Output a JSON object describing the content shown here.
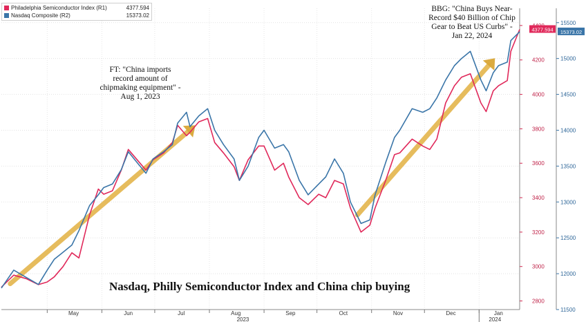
{
  "chart_data": {
    "type": "line",
    "title": "Nasdaq, Philly Semiconductor Index and China chip buying",
    "legend": {
      "placement": "top-left",
      "entries": [
        {
          "name": "Philadelphia Semiconductor Index (R1)",
          "value": "4377.594",
          "color": "#e0285a"
        },
        {
          "name": "Nasdaq Composite (R2)",
          "value": "15373.02",
          "color": "#3a75a8"
        }
      ]
    },
    "x_axis": {
      "month_labels": [
        "May",
        "Jun",
        "Jul",
        "Aug",
        "Sep",
        "Oct",
        "Nov",
        "Dec",
        "Jan"
      ],
      "year_labels": [
        "2023",
        "2024"
      ]
    },
    "y_axis_r1": {
      "series": "Philadelphia Semiconductor Index",
      "range": [
        2750,
        4500
      ],
      "ticks": [
        "2800",
        "3000",
        "3200",
        "3400",
        "3600",
        "3800",
        "4000",
        "4200",
        "4400"
      ]
    },
    "y_axis_r2": {
      "series": "Nasdaq Composite",
      "range": [
        11500,
        15700
      ],
      "ticks": [
        "11500",
        "12000",
        "12500",
        "13000",
        "13500",
        "14000",
        "14500",
        "15000",
        "15500"
      ]
    },
    "x_range": [
      "2023-04-05",
      "2024-01-24"
    ],
    "grid": true,
    "series": [
      {
        "name": "Philadelphia Semiconductor Index",
        "axis": "R1",
        "color": "#e0285a",
        "last_value_label": "4377.594",
        "points": [
          [
            "2023-04-05",
            2880
          ],
          [
            "2023-04-12",
            2950
          ],
          [
            "2023-04-19",
            2930
          ],
          [
            "2023-04-26",
            2895
          ],
          [
            "2023-05-01",
            2910
          ],
          [
            "2023-05-05",
            2940
          ],
          [
            "2023-05-10",
            3000
          ],
          [
            "2023-05-15",
            3080
          ],
          [
            "2023-05-19",
            3050
          ],
          [
            "2023-05-25",
            3300
          ],
          [
            "2023-05-30",
            3450
          ],
          [
            "2023-06-02",
            3420
          ],
          [
            "2023-06-07",
            3440
          ],
          [
            "2023-06-12",
            3560
          ],
          [
            "2023-06-16",
            3680
          ],
          [
            "2023-06-21",
            3620
          ],
          [
            "2023-06-26",
            3560
          ],
          [
            "2023-06-30",
            3620
          ],
          [
            "2023-07-06",
            3660
          ],
          [
            "2023-07-11",
            3720
          ],
          [
            "2023-07-14",
            3820
          ],
          [
            "2023-07-19",
            3760
          ],
          [
            "2023-07-21",
            3780
          ],
          [
            "2023-07-26",
            3840
          ],
          [
            "2023-07-31",
            3860
          ],
          [
            "2023-08-04",
            3720
          ],
          [
            "2023-08-09",
            3660
          ],
          [
            "2023-08-15",
            3580
          ],
          [
            "2023-08-18",
            3500
          ],
          [
            "2023-08-23",
            3620
          ],
          [
            "2023-08-29",
            3700
          ],
          [
            "2023-09-01",
            3700
          ],
          [
            "2023-09-07",
            3560
          ],
          [
            "2023-09-12",
            3600
          ],
          [
            "2023-09-15",
            3520
          ],
          [
            "2023-09-21",
            3400
          ],
          [
            "2023-09-26",
            3360
          ],
          [
            "2023-10-02",
            3420
          ],
          [
            "2023-10-06",
            3400
          ],
          [
            "2023-10-11",
            3500
          ],
          [
            "2023-10-16",
            3480
          ],
          [
            "2023-10-20",
            3340
          ],
          [
            "2023-10-26",
            3200
          ],
          [
            "2023-10-31",
            3240
          ],
          [
            "2023-11-03",
            3340
          ],
          [
            "2023-11-09",
            3500
          ],
          [
            "2023-11-14",
            3650
          ],
          [
            "2023-11-17",
            3660
          ],
          [
            "2023-11-24",
            3740
          ],
          [
            "2023-11-30",
            3700
          ],
          [
            "2023-12-04",
            3680
          ],
          [
            "2023-12-08",
            3740
          ],
          [
            "2023-12-13",
            3950
          ],
          [
            "2023-12-18",
            4050
          ],
          [
            "2023-12-22",
            4100
          ],
          [
            "2023-12-27",
            4120
          ],
          [
            "2024-01-02",
            3950
          ],
          [
            "2024-01-05",
            3900
          ],
          [
            "2024-01-09",
            4020
          ],
          [
            "2024-01-12",
            4050
          ],
          [
            "2024-01-17",
            4080
          ],
          [
            "2024-01-19",
            4250
          ],
          [
            "2024-01-24",
            4377.594
          ]
        ]
      },
      {
        "name": "Nasdaq Composite",
        "axis": "R2",
        "color": "#3a75a8",
        "last_value_label": "15373.02",
        "points": [
          [
            "2023-04-05",
            11800
          ],
          [
            "2023-04-12",
            12050
          ],
          [
            "2023-04-19",
            11950
          ],
          [
            "2023-04-26",
            11850
          ],
          [
            "2023-05-01",
            12050
          ],
          [
            "2023-05-05",
            12200
          ],
          [
            "2023-05-10",
            12300
          ],
          [
            "2023-05-15",
            12400
          ],
          [
            "2023-05-19",
            12600
          ],
          [
            "2023-05-25",
            12950
          ],
          [
            "2023-05-30",
            13100
          ],
          [
            "2023-06-02",
            13200
          ],
          [
            "2023-06-07",
            13250
          ],
          [
            "2023-06-12",
            13450
          ],
          [
            "2023-06-16",
            13700
          ],
          [
            "2023-06-21",
            13550
          ],
          [
            "2023-06-26",
            13400
          ],
          [
            "2023-06-30",
            13600
          ],
          [
            "2023-07-06",
            13700
          ],
          [
            "2023-07-11",
            13800
          ],
          [
            "2023-07-14",
            14100
          ],
          [
            "2023-07-19",
            14250
          ],
          [
            "2023-07-21",
            14050
          ],
          [
            "2023-07-26",
            14200
          ],
          [
            "2023-07-31",
            14300
          ],
          [
            "2023-08-04",
            14000
          ],
          [
            "2023-08-09",
            13800
          ],
          [
            "2023-08-15",
            13600
          ],
          [
            "2023-08-18",
            13300
          ],
          [
            "2023-08-23",
            13500
          ],
          [
            "2023-08-29",
            13900
          ],
          [
            "2023-09-01",
            14000
          ],
          [
            "2023-09-07",
            13750
          ],
          [
            "2023-09-12",
            13800
          ],
          [
            "2023-09-15",
            13700
          ],
          [
            "2023-09-21",
            13300
          ],
          [
            "2023-09-26",
            13100
          ],
          [
            "2023-10-02",
            13250
          ],
          [
            "2023-10-06",
            13350
          ],
          [
            "2023-10-11",
            13600
          ],
          [
            "2023-10-16",
            13400
          ],
          [
            "2023-10-20",
            13000
          ],
          [
            "2023-10-26",
            12700
          ],
          [
            "2023-10-31",
            12750
          ],
          [
            "2023-11-03",
            13100
          ],
          [
            "2023-11-09",
            13550
          ],
          [
            "2023-11-14",
            13900
          ],
          [
            "2023-11-17",
            14000
          ],
          [
            "2023-11-24",
            14300
          ],
          [
            "2023-11-30",
            14250
          ],
          [
            "2023-12-04",
            14300
          ],
          [
            "2023-12-08",
            14450
          ],
          [
            "2023-12-13",
            14700
          ],
          [
            "2023-12-18",
            14900
          ],
          [
            "2023-12-22",
            15000
          ],
          [
            "2023-12-27",
            15100
          ],
          [
            "2024-01-02",
            14700
          ],
          [
            "2024-01-05",
            14550
          ],
          [
            "2024-01-09",
            14800
          ],
          [
            "2024-01-12",
            14900
          ],
          [
            "2024-01-17",
            14950
          ],
          [
            "2024-01-19",
            15250
          ],
          [
            "2024-01-24",
            15373.02
          ]
        ]
      }
    ],
    "trend_arrows": [
      {
        "series_axis": "R1",
        "from": [
          "2023-04-10",
          2900
        ],
        "to": [
          "2023-07-24",
          3820
        ]
      },
      {
        "series_axis": "R1",
        "from": [
          "2023-10-24",
          3300
        ],
        "to": [
          "2024-01-10",
          4210
        ]
      }
    ],
    "annotations": [
      {
        "text": "FT: \"China imports\nrecord amount of\nchipmaking equipment\" -\nAug 1, 2023"
      },
      {
        "text": "BBG: \"China Buys Near-\nRecord $40 Billion of Chip\nGear to Beat US Curbs\" -\nJan 22, 2024"
      }
    ]
  }
}
